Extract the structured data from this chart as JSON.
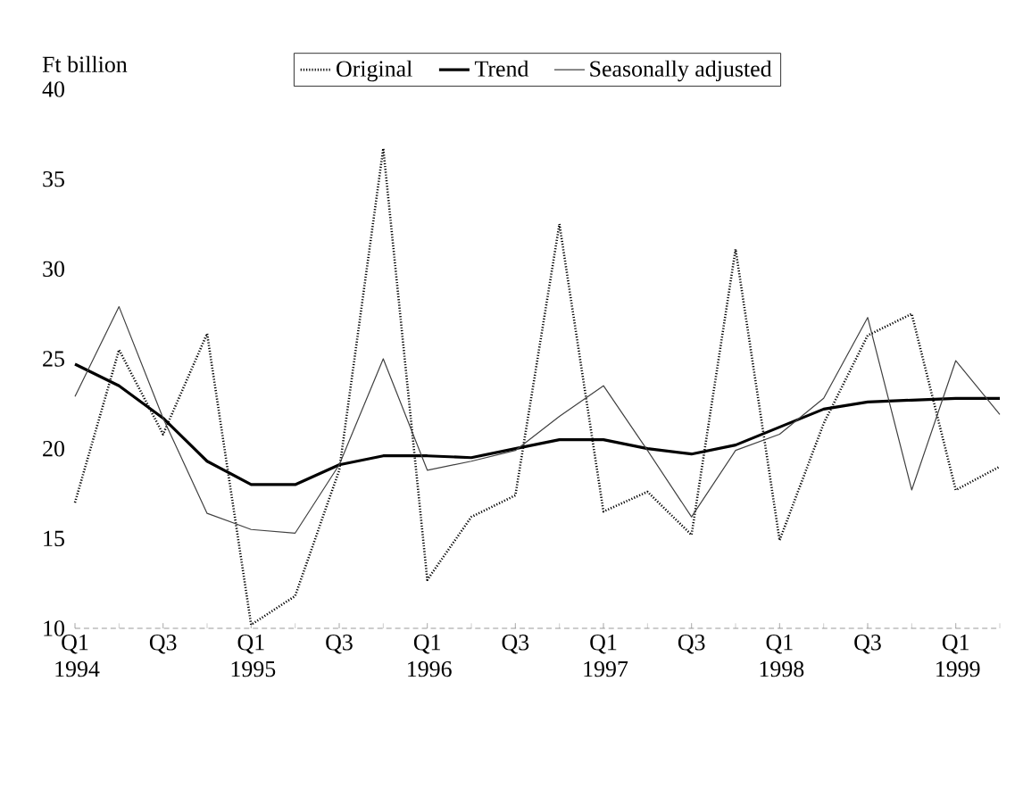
{
  "chart_data": {
    "type": "line",
    "ylabel": "Ft billion",
    "categories": [
      "Q1 1994",
      null,
      "Q3",
      null,
      "Q1 1995",
      null,
      "Q3",
      null,
      "Q1 1996",
      null,
      "Q3",
      null,
      "Q1 1997",
      null,
      "Q3",
      null,
      "Q1 1998",
      null,
      "Q3",
      null,
      "Q1 1999",
      null
    ],
    "ylim": [
      10,
      40
    ],
    "yticks": [
      10,
      15,
      20,
      25,
      30,
      35,
      40
    ],
    "legend": "top",
    "grid": false,
    "series": [
      {
        "name": "Original",
        "color": "#000000",
        "line_style": "dotted",
        "values": [
          17.0,
          25.5,
          20.8,
          26.4,
          10.2,
          11.8,
          18.8,
          36.7,
          12.7,
          16.2,
          17.4,
          32.5,
          16.5,
          17.6,
          15.2,
          31.1,
          14.9,
          21.4,
          26.3,
          27.5,
          17.7,
          19.0
        ]
      },
      {
        "name": "Trend",
        "color": "#000000",
        "line_style": "solid",
        "values": [
          24.7,
          23.5,
          21.7,
          19.3,
          18.0,
          18.0,
          19.1,
          19.6,
          19.6,
          19.5,
          20.0,
          20.5,
          20.5,
          20.0,
          19.7,
          20.2,
          21.2,
          22.2,
          22.6,
          22.7,
          22.8,
          22.8
        ]
      },
      {
        "name": "Seasonally adjusted",
        "color": "#404040",
        "line_style": "solid",
        "values": [
          22.9,
          27.9,
          21.7,
          16.4,
          15.5,
          15.3,
          19.1,
          25.0,
          18.8,
          19.3,
          19.9,
          21.8,
          23.5,
          19.9,
          16.2,
          19.9,
          20.8,
          22.8,
          27.3,
          17.7,
          24.9,
          21.9
        ]
      }
    ]
  }
}
